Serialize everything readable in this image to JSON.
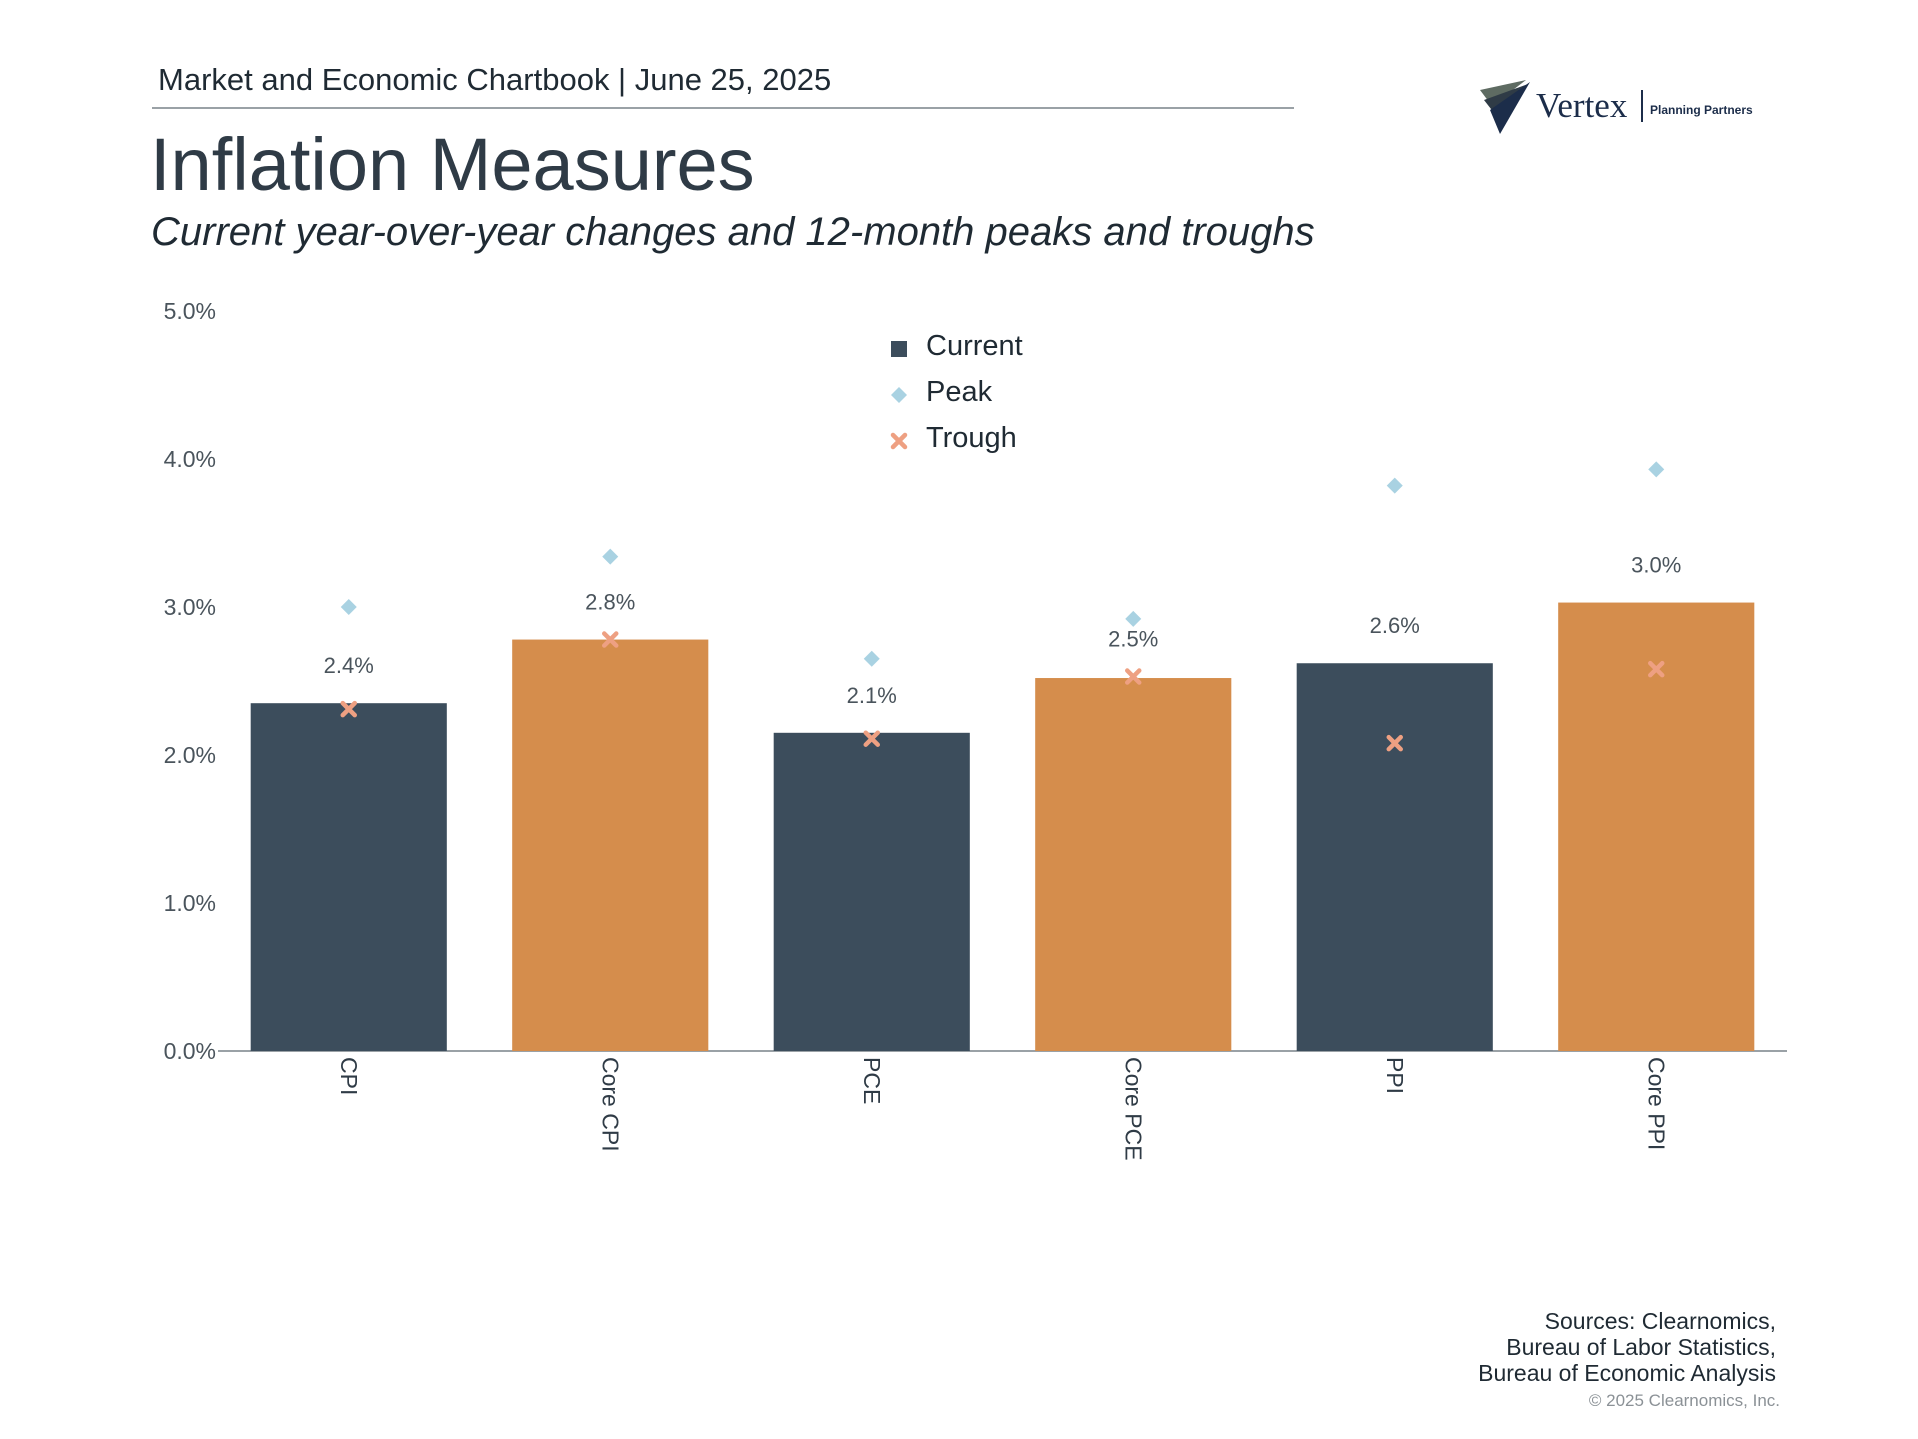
{
  "header": {
    "chartbook_label": "Market and Economic Chartbook | June 25, 2025",
    "title": "Inflation Measures",
    "subtitle": "Current year-over-year changes and 12-month peaks and troughs"
  },
  "logo": {
    "name": "Vertex",
    "tagline": "Planning Partners"
  },
  "colors": {
    "current_dark": "#3c4d5c",
    "current_orange": "#d58d4c",
    "peak": "#a9d2e2",
    "trough": "#eea082",
    "axis": "#9aa1a6"
  },
  "chart_data": {
    "type": "bar",
    "categories": [
      "CPI",
      "Core CPI",
      "PCE",
      "Core PCE",
      "PPI",
      "Core PPI"
    ],
    "series": [
      {
        "name": "Current",
        "values": [
          2.35,
          2.78,
          2.15,
          2.52,
          2.62,
          3.03
        ],
        "labels": [
          "2.4%",
          "2.8%",
          "2.1%",
          "2.5%",
          "2.6%",
          "3.0%"
        ]
      },
      {
        "name": "Peak",
        "values": [
          3.0,
          3.34,
          2.65,
          2.92,
          3.82,
          3.93
        ]
      },
      {
        "name": "Trough",
        "values": [
          2.31,
          2.78,
          2.11,
          2.53,
          2.08,
          2.58
        ]
      }
    ],
    "bar_colors": [
      "#3c4d5c",
      "#d58d4c",
      "#3c4d5c",
      "#d58d4c",
      "#3c4d5c",
      "#d58d4c"
    ],
    "ylim": [
      0,
      5
    ],
    "yticks": [
      "0.0%",
      "1.0%",
      "2.0%",
      "3.0%",
      "4.0%",
      "5.0%"
    ],
    "legend": {
      "placement": "top-center",
      "entries": [
        "Current",
        "Peak",
        "Trough"
      ]
    },
    "grid": false
  },
  "footer": {
    "sources_line1": "Sources: Clearnomics,",
    "sources_line2": "Bureau of Labor Statistics,",
    "sources_line3": "Bureau of Economic Analysis",
    "copyright": "© 2025 Clearnomics, Inc."
  }
}
